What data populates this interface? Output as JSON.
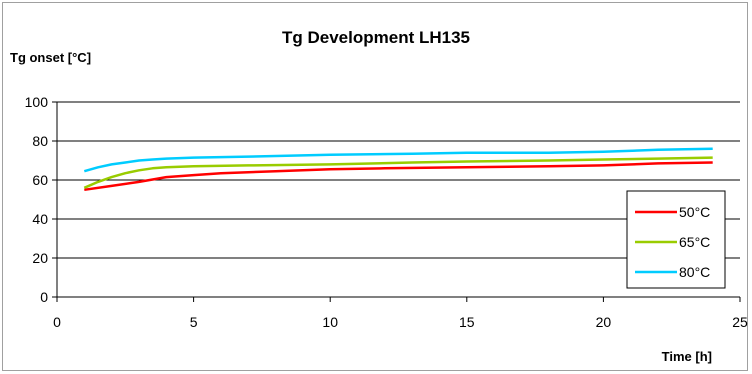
{
  "chart_data": {
    "type": "line",
    "title": "Tg Development LH135",
    "ylabel": "Tg onset [°C]",
    "xlabel": "Time [h]",
    "xlim": [
      0,
      25
    ],
    "ylim": [
      0,
      100
    ],
    "xticks": [
      0,
      5,
      10,
      15,
      20,
      25
    ],
    "yticks": [
      0,
      20,
      40,
      60,
      80,
      100
    ],
    "grid": "horizontal",
    "legend_position": "right",
    "series": [
      {
        "name": "50°C",
        "color": "#ff0000",
        "points": [
          [
            1,
            55
          ],
          [
            2,
            57
          ],
          [
            3,
            59
          ],
          [
            4,
            61.5
          ],
          [
            5,
            62.5
          ],
          [
            6,
            63.5
          ],
          [
            7,
            64
          ],
          [
            8,
            64.5
          ],
          [
            9,
            65
          ],
          [
            10,
            65.5
          ],
          [
            12,
            66
          ],
          [
            15,
            66.5
          ],
          [
            18,
            67
          ],
          [
            20,
            67.5
          ],
          [
            22,
            68.5
          ],
          [
            24,
            69
          ]
        ]
      },
      {
        "name": "65°C",
        "color": "#99cc00",
        "points": [
          [
            1,
            56
          ],
          [
            1.5,
            59
          ],
          [
            2,
            61.5
          ],
          [
            2.5,
            63.5
          ],
          [
            3,
            65
          ],
          [
            3.5,
            66
          ],
          [
            4,
            66.5
          ],
          [
            5,
            67
          ],
          [
            7,
            67.5
          ],
          [
            10,
            68
          ],
          [
            13,
            69
          ],
          [
            15,
            69.5
          ],
          [
            18,
            70
          ],
          [
            20,
            70.5
          ],
          [
            22,
            71
          ],
          [
            24,
            71.5
          ]
        ]
      },
      {
        "name": "80°C",
        "color": "#00ccff",
        "points": [
          [
            1,
            64.5
          ],
          [
            1.5,
            66.5
          ],
          [
            2,
            68
          ],
          [
            2.5,
            69
          ],
          [
            3,
            70
          ],
          [
            3.5,
            70.5
          ],
          [
            4,
            71
          ],
          [
            5,
            71.5
          ],
          [
            7,
            72
          ],
          [
            10,
            73
          ],
          [
            13,
            73.5
          ],
          [
            15,
            74
          ],
          [
            18,
            74
          ],
          [
            20,
            74.5
          ],
          [
            22,
            75.5
          ],
          [
            24,
            76
          ]
        ]
      }
    ]
  }
}
